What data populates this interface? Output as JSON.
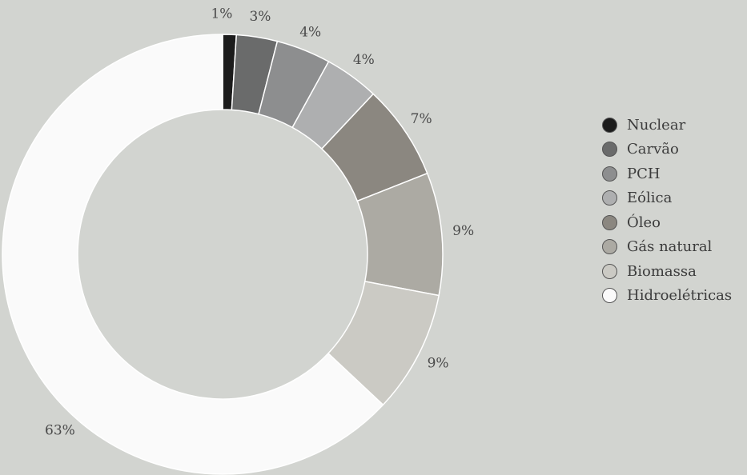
{
  "chart_data": {
    "type": "pie",
    "donut": true,
    "title": "",
    "categories": [
      "Nuclear",
      "Carvão",
      "PCH",
      "Eólica",
      "Óleo",
      "Gás natural",
      "Biomassa",
      "Hidroelétricas"
    ],
    "values": [
      1,
      3,
      4,
      4,
      7,
      9,
      9,
      63
    ],
    "data_labels": [
      "1%",
      "3%",
      "4%",
      "4%",
      "7%",
      "9%",
      "9%",
      "63%"
    ],
    "colors": [
      "#1c1c1c",
      "#6a6b6b",
      "#8d8e8f",
      "#aeafb0",
      "#8b8780",
      "#acaaa3",
      "#cbcac4",
      "#fafafa"
    ],
    "legend_position": "right"
  }
}
